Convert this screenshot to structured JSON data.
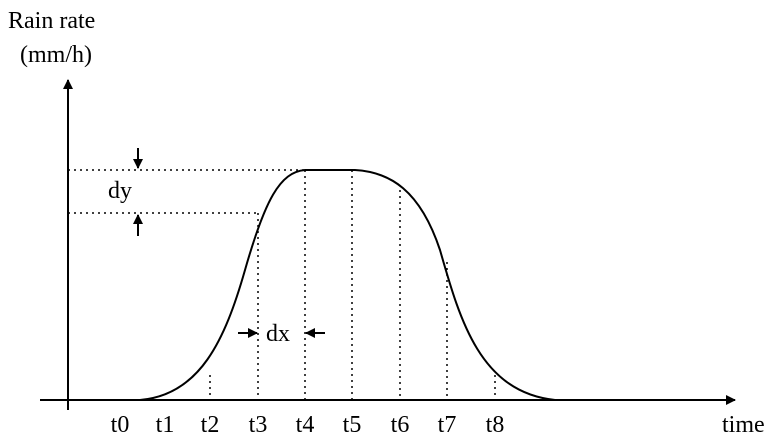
{
  "axes": {
    "y_label": "Rain rate",
    "y_unit": "(mm/h)",
    "x_label": "time"
  },
  "ticks": [
    "t0",
    "t1",
    "t2",
    "t3",
    "t4",
    "t5",
    "t6",
    "t7",
    "t8"
  ],
  "annotations": {
    "dy": "dy",
    "dx": "dx"
  }
}
